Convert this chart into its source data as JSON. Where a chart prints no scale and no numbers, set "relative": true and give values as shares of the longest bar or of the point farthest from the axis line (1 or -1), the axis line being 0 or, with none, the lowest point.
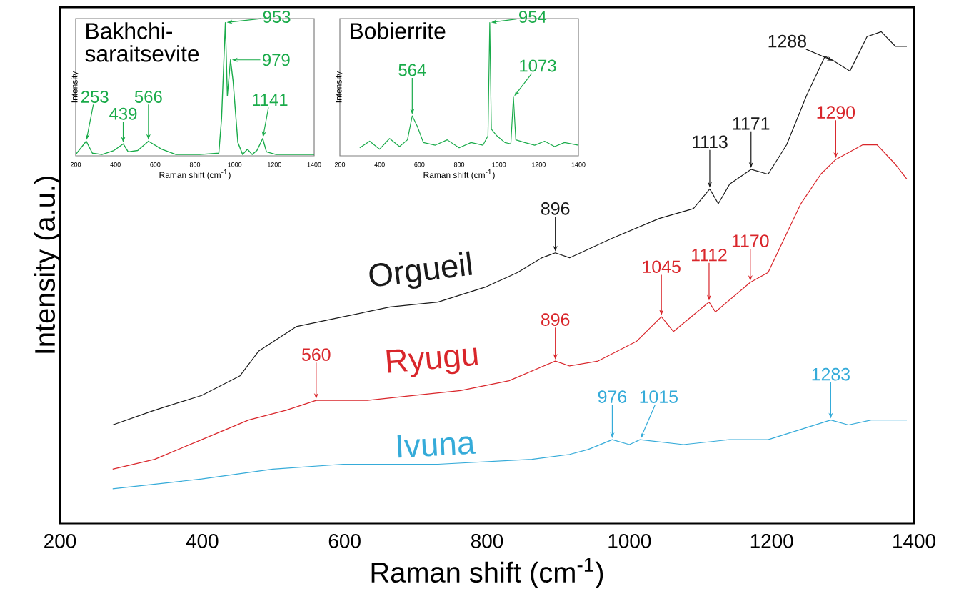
{
  "chart_data": [
    {
      "type": "line",
      "relative": true,
      "xlabel": "Raman shift (cm$^{-1}$)",
      "ylabel": "Intensity (a.u.)",
      "xlim": [
        200,
        1400
      ],
      "xticks": [
        200,
        400,
        600,
        800,
        1000,
        1200,
        1400
      ],
      "series": [
        {
          "name": "Orgueil",
          "color": "#1a1a1a",
          "x": [
            274,
            333,
            399,
            453,
            479,
            532,
            598,
            664,
            731,
            797,
            843,
            877,
            896,
            916,
            976,
            1042,
            1090,
            1113,
            1125,
            1141,
            1171,
            1195,
            1221,
            1249,
            1275,
            1288,
            1310,
            1334,
            1354,
            1374,
            1390
          ],
          "values": [
            0.2,
            0.23,
            0.26,
            0.3,
            0.35,
            0.4,
            0.42,
            0.44,
            0.45,
            0.48,
            0.51,
            0.54,
            0.55,
            0.54,
            0.58,
            0.62,
            0.64,
            0.68,
            0.65,
            0.69,
            0.72,
            0.71,
            0.77,
            0.87,
            0.95,
            0.94,
            0.92,
            0.99,
            1.0,
            0.97,
            0.97
          ]
        },
        {
          "name": "Ryugu",
          "color": "#d9262b",
          "x": [
            274,
            333,
            399,
            465,
            518,
            560,
            632,
            698,
            763,
            831,
            896,
            916,
            956,
            1010,
            1045,
            1062,
            1112,
            1121,
            1170,
            1195,
            1241,
            1269,
            1290,
            1328,
            1348,
            1374,
            1390
          ],
          "values": [
            0.11,
            0.13,
            0.17,
            0.21,
            0.23,
            0.25,
            0.25,
            0.26,
            0.27,
            0.29,
            0.33,
            0.32,
            0.33,
            0.37,
            0.42,
            0.39,
            0.45,
            0.43,
            0.49,
            0.51,
            0.65,
            0.71,
            0.74,
            0.77,
            0.77,
            0.73,
            0.7
          ]
        },
        {
          "name": "Ivuna",
          "color": "#35abd9",
          "x": [
            274,
            399,
            499,
            598,
            731,
            863,
            916,
            942,
            976,
            1000,
            1015,
            1076,
            1141,
            1195,
            1283,
            1308,
            1340,
            1390
          ],
          "values": [
            0.07,
            0.09,
            0.11,
            0.12,
            0.12,
            0.13,
            0.14,
            0.15,
            0.17,
            0.16,
            0.17,
            0.16,
            0.17,
            0.17,
            0.21,
            0.2,
            0.21,
            0.21
          ]
        }
      ],
      "annotations": [
        {
          "text": "896",
          "x": 896,
          "y": 0.55
        },
        {
          "text": "1113",
          "x": 1113,
          "y": 0.68
        },
        {
          "text": "1171",
          "x": 1171,
          "y": 0.72
        },
        {
          "text": "1288",
          "x": 1288,
          "y": 0.94
        },
        {
          "text": "560",
          "x": 560,
          "y": 0.25
        },
        {
          "text": "896",
          "x": 896,
          "y": 0.33
        },
        {
          "text": "1045",
          "x": 1045,
          "y": 0.42
        },
        {
          "text": "1112",
          "x": 1112,
          "y": 0.45
        },
        {
          "text": "1170",
          "x": 1170,
          "y": 0.49
        },
        {
          "text": "1290",
          "x": 1290,
          "y": 0.74
        },
        {
          "text": "976",
          "x": 976,
          "y": 0.17
        },
        {
          "text": "1015",
          "x": 1015,
          "y": 0.17
        },
        {
          "text": "1283",
          "x": 1283,
          "y": 0.21
        }
      ]
    },
    {
      "type": "line",
      "relative": true,
      "title": "Bakhchi-saraitsevite",
      "xlabel": "Raman shift (cm$^{-1}$)",
      "ylabel": "Intensity",
      "xlim": [
        200,
        1400
      ],
      "xticks": [
        200,
        400,
        600,
        800,
        1000,
        1200,
        1400
      ],
      "series": [
        {
          "color": "#1aab4a",
          "x": [
            200,
            253,
            284,
            332,
            392,
            439,
            464,
            512,
            566,
            632,
            704,
            824,
            920,
            934,
            953,
            963,
            979,
            992,
            1016,
            1040,
            1064,
            1088,
            1112,
            1141,
            1160,
            1208,
            1400
          ],
          "values": [
            0.01,
            0.11,
            0.02,
            0.01,
            0.04,
            0.09,
            0.03,
            0.04,
            0.11,
            0.05,
            0.01,
            0.01,
            0.02,
            0.28,
            1.0,
            0.45,
            0.72,
            0.56,
            0.1,
            0.01,
            0.05,
            0.01,
            0.04,
            0.13,
            0.03,
            0.01,
            0.01
          ]
        }
      ],
      "annotations": [
        {
          "text": "253",
          "x": 253,
          "y": 0.11
        },
        {
          "text": "439",
          "x": 439,
          "y": 0.09
        },
        {
          "text": "566",
          "x": 566,
          "y": 0.11
        },
        {
          "text": "953",
          "x": 953,
          "y": 1.0
        },
        {
          "text": "979",
          "x": 979,
          "y": 0.72
        },
        {
          "text": "1141",
          "x": 1141,
          "y": 0.13
        }
      ]
    },
    {
      "type": "line",
      "relative": true,
      "title": "Bobierrite",
      "xlabel": "Raman shift (cm$^{-1}$)",
      "ylabel": "Intensity",
      "xlim": [
        200,
        1400
      ],
      "xticks": [
        200,
        400,
        600,
        800,
        1000,
        1200,
        1400
      ],
      "series": [
        {
          "color": "#1aab4a",
          "x": [
            300,
            350,
            400,
            450,
            500,
            540,
            564,
            590,
            620,
            680,
            740,
            800,
            860,
            920,
            945,
            954,
            962,
            990,
            1030,
            1060,
            1073,
            1085,
            1130,
            1180,
            1230,
            1280,
            1330,
            1400
          ],
          "values": [
            0.06,
            0.11,
            0.05,
            0.13,
            0.07,
            0.12,
            0.3,
            0.22,
            0.1,
            0.08,
            0.12,
            0.06,
            0.1,
            0.08,
            0.15,
            1.0,
            0.2,
            0.15,
            0.1,
            0.09,
            0.44,
            0.12,
            0.1,
            0.08,
            0.11,
            0.07,
            0.1,
            0.08
          ]
        }
      ],
      "annotations": [
        {
          "text": "564",
          "x": 564,
          "y": 0.3
        },
        {
          "text": "954",
          "x": 954,
          "y": 1.0
        },
        {
          "text": "1073",
          "x": 1073,
          "y": 0.44
        }
      ]
    }
  ]
}
